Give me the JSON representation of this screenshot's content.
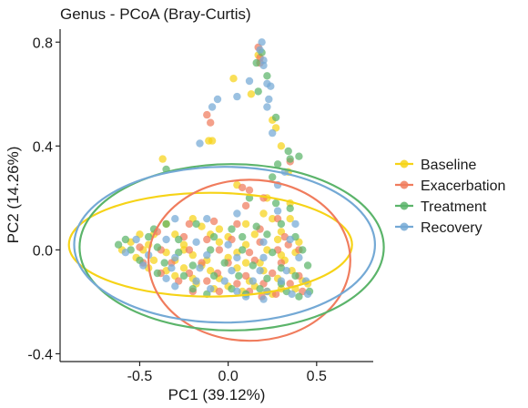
{
  "chart_data": {
    "type": "scatter",
    "title": "Genus - PCoA (Bray-Curtis)",
    "xlabel": "PC1 (39.12%)",
    "ylabel": "PC2 (14.26%)",
    "xlim": [
      -0.95,
      0.82
    ],
    "ylim": [
      -0.43,
      0.85
    ],
    "xticks": [
      -0.5,
      0.0,
      0.5
    ],
    "xtick_labels": [
      "-0.5",
      "0.0",
      "0.5"
    ],
    "yticks": [
      -0.4,
      0.0,
      0.4,
      0.8
    ],
    "ytick_labels": [
      "-0.4",
      "0.0",
      "0.4",
      "0.8"
    ],
    "grid": false,
    "legend_position": "right",
    "series": [
      {
        "name": "Baseline",
        "color": "#F6D317",
        "points": [
          [
            0.17,
            0.75
          ],
          [
            0.03,
            0.66
          ],
          [
            0.13,
            0.6
          ],
          [
            0.25,
            0.5
          ],
          [
            0.27,
            0.47
          ],
          [
            -0.11,
            0.42
          ],
          [
            -0.09,
            0.42
          ],
          [
            -0.37,
            0.35
          ],
          [
            0.3,
            0.4
          ],
          [
            0.34,
            0.3
          ],
          [
            0.05,
            0.25
          ],
          [
            0.22,
            0.2
          ],
          [
            0.35,
            0.18
          ],
          [
            -0.2,
            0.12
          ],
          [
            -0.35,
            0.1
          ],
          [
            -0.15,
            0.09
          ],
          [
            -0.05,
            0.08
          ],
          [
            0.1,
            0.1
          ],
          [
            0.2,
            0.14
          ],
          [
            0.25,
            0.12
          ],
          [
            0.35,
            0.12
          ],
          [
            -0.5,
            0.06
          ],
          [
            -0.42,
            0.06
          ],
          [
            -0.3,
            0.06
          ],
          [
            -0.1,
            0.06
          ],
          [
            0.0,
            0.05
          ],
          [
            0.15,
            0.06
          ],
          [
            0.3,
            0.07
          ],
          [
            -0.55,
            0.03
          ],
          [
            -0.45,
            0.02
          ],
          [
            -0.25,
            0.02
          ],
          [
            -0.05,
            0.03
          ],
          [
            0.1,
            0.02
          ],
          [
            0.28,
            0.04
          ],
          [
            0.4,
            0.03
          ],
          [
            -0.6,
            0.0
          ],
          [
            -0.48,
            0.0
          ],
          [
            -0.35,
            -0.01
          ],
          [
            -0.2,
            -0.02
          ],
          [
            0.05,
            -0.01
          ],
          [
            0.22,
            0.0
          ],
          [
            0.38,
            -0.01
          ],
          [
            -0.52,
            -0.03
          ],
          [
            -0.42,
            -0.04
          ],
          [
            -0.3,
            -0.04
          ],
          [
            -0.12,
            -0.04
          ],
          [
            0.0,
            -0.03
          ],
          [
            0.18,
            -0.05
          ],
          [
            0.32,
            -0.04
          ],
          [
            -0.45,
            -0.07
          ],
          [
            -0.35,
            -0.08
          ],
          [
            -0.25,
            -0.07
          ],
          [
            -0.1,
            -0.08
          ],
          [
            0.05,
            -0.07
          ],
          [
            0.2,
            -0.08
          ],
          [
            0.36,
            -0.08
          ],
          [
            -0.3,
            -0.1
          ],
          [
            -0.2,
            -0.11
          ],
          [
            -0.05,
            -0.11
          ],
          [
            0.12,
            -0.12
          ],
          [
            0.28,
            -0.11
          ],
          [
            0.42,
            -0.12
          ],
          [
            -0.18,
            -0.13
          ],
          [
            0.0,
            -0.14
          ],
          [
            0.15,
            -0.14
          ],
          [
            0.3,
            -0.15
          ],
          [
            -0.08,
            -0.15
          ],
          [
            0.08,
            -0.16
          ],
          [
            0.22,
            -0.16
          ],
          [
            0.38,
            -0.15
          ],
          [
            0.45,
            -0.13
          ],
          [
            0.25,
            -0.17
          ],
          [
            -0.15,
            -0.06
          ],
          [
            0.1,
            -0.05
          ],
          [
            0.3,
            -0.02
          ],
          [
            -0.25,
            0.0
          ]
        ]
      },
      {
        "name": "Exacerbation",
        "color": "#F07C5D",
        "points": [
          [
            0.17,
            0.78
          ],
          [
            0.18,
            0.74
          ],
          [
            0.18,
            0.72
          ],
          [
            -0.12,
            0.52
          ],
          [
            0.35,
            0.34
          ],
          [
            -0.1,
            0.49
          ],
          [
            0.08,
            0.24
          ],
          [
            0.12,
            0.23
          ],
          [
            0.2,
            0.2
          ],
          [
            0.1,
            0.17
          ],
          [
            0.28,
            0.12
          ],
          [
            0.32,
            0.05
          ],
          [
            -0.22,
            0.1
          ],
          [
            -0.08,
            0.11
          ],
          [
            0.05,
            0.1
          ],
          [
            0.18,
            0.08
          ],
          [
            -0.4,
            0.07
          ],
          [
            -0.25,
            0.05
          ],
          [
            -0.12,
            0.04
          ],
          [
            0.02,
            0.04
          ],
          [
            0.18,
            0.03
          ],
          [
            0.34,
            0.02
          ],
          [
            -0.5,
            0.01
          ],
          [
            -0.38,
            0.0
          ],
          [
            -0.22,
            0.0
          ],
          [
            -0.05,
            0.0
          ],
          [
            0.12,
            -0.01
          ],
          [
            0.28,
            0.0
          ],
          [
            0.4,
            0.0
          ],
          [
            -0.48,
            -0.05
          ],
          [
            -0.32,
            -0.05
          ],
          [
            -0.15,
            -0.05
          ],
          [
            0.0,
            -0.05
          ],
          [
            0.15,
            -0.04
          ],
          [
            0.3,
            -0.05
          ],
          [
            -0.38,
            -0.09
          ],
          [
            -0.22,
            -0.09
          ],
          [
            -0.06,
            -0.09
          ],
          [
            0.1,
            -0.1
          ],
          [
            0.25,
            -0.09
          ],
          [
            0.4,
            -0.1
          ],
          [
            -0.28,
            -0.12
          ],
          [
            -0.12,
            -0.12
          ],
          [
            0.05,
            -0.13
          ],
          [
            0.2,
            -0.13
          ],
          [
            0.35,
            -0.13
          ],
          [
            -0.05,
            -0.16
          ],
          [
            0.12,
            -0.16
          ],
          [
            0.27,
            -0.17
          ],
          [
            0.42,
            -0.16
          ],
          [
            0.19,
            -0.18
          ],
          [
            -0.2,
            -0.16
          ]
        ]
      },
      {
        "name": "Treatment",
        "color": "#5BB46A",
        "points": [
          [
            0.19,
            0.76
          ],
          [
            0.16,
            0.72
          ],
          [
            0.22,
            0.67
          ],
          [
            0.17,
            0.61
          ],
          [
            0.27,
            0.51
          ],
          [
            0.34,
            0.38
          ],
          [
            0.35,
            0.35
          ],
          [
            0.28,
            0.33
          ],
          [
            0.25,
            0.28
          ],
          [
            0.4,
            0.36
          ],
          [
            -0.35,
            0.31
          ],
          [
            -0.42,
            0.08
          ],
          [
            -0.35,
            0.1
          ],
          [
            -0.18,
            0.1
          ],
          [
            0.02,
            0.08
          ],
          [
            0.12,
            0.2
          ],
          [
            0.27,
            0.18
          ],
          [
            0.35,
            0.16
          ],
          [
            0.16,
            0.09
          ],
          [
            0.3,
            0.1
          ],
          [
            -0.58,
            0.04
          ],
          [
            -0.45,
            0.05
          ],
          [
            -0.28,
            0.04
          ],
          [
            -0.08,
            0.05
          ],
          [
            0.08,
            0.05
          ],
          [
            0.22,
            0.06
          ],
          [
            0.38,
            0.05
          ],
          [
            -0.55,
            0.0
          ],
          [
            -0.4,
            0.01
          ],
          [
            -0.28,
            -0.01
          ],
          [
            -0.1,
            0.0
          ],
          [
            0.08,
            0.0
          ],
          [
            0.25,
            -0.01
          ],
          [
            0.42,
            0.0
          ],
          [
            -0.5,
            -0.04
          ],
          [
            -0.36,
            -0.05
          ],
          [
            -0.2,
            -0.06
          ],
          [
            -0.02,
            -0.05
          ],
          [
            0.14,
            -0.06
          ],
          [
            0.3,
            -0.07
          ],
          [
            0.45,
            -0.06
          ],
          [
            -0.4,
            -0.09
          ],
          [
            -0.25,
            -0.1
          ],
          [
            -0.08,
            -0.1
          ],
          [
            0.06,
            -0.1
          ],
          [
            0.22,
            -0.11
          ],
          [
            0.38,
            -0.1
          ],
          [
            -0.2,
            -0.15
          ],
          [
            0.02,
            -0.15
          ],
          [
            0.18,
            -0.15
          ],
          [
            0.33,
            -0.16
          ],
          [
            0.46,
            -0.16
          ],
          [
            -0.12,
            -0.17
          ],
          [
            0.1,
            -0.17
          ],
          [
            0.4,
            -0.18
          ],
          [
            0.3,
            -0.13
          ],
          [
            -0.62,
            0.02
          ]
        ]
      },
      {
        "name": "Recovery",
        "color": "#74A9D5",
        "points": [
          [
            0.19,
            0.8
          ],
          [
            0.18,
            0.77
          ],
          [
            0.2,
            0.73
          ],
          [
            0.2,
            0.71
          ],
          [
            0.22,
            0.64
          ],
          [
            0.12,
            0.65
          ],
          [
            0.24,
            0.63
          ],
          [
            0.23,
            0.58
          ],
          [
            0.05,
            0.59
          ],
          [
            -0.06,
            0.58
          ],
          [
            0.22,
            0.55
          ],
          [
            -0.09,
            0.55
          ],
          [
            0.25,
            0.45
          ],
          [
            -0.16,
            0.41
          ],
          [
            0.32,
            0.3
          ],
          [
            0.28,
            0.25
          ],
          [
            -0.3,
            0.12
          ],
          [
            -0.12,
            0.12
          ],
          [
            0.05,
            0.14
          ],
          [
            0.28,
            0.15
          ],
          [
            0.38,
            0.1
          ],
          [
            -0.52,
            0.04
          ],
          [
            -0.35,
            0.04
          ],
          [
            -0.18,
            0.03
          ],
          [
            0.0,
            0.02
          ],
          [
            0.2,
            0.03
          ],
          [
            0.35,
            0.04
          ],
          [
            -0.58,
            -0.01
          ],
          [
            -0.45,
            -0.02
          ],
          [
            -0.3,
            -0.03
          ],
          [
            -0.12,
            -0.02
          ],
          [
            0.05,
            -0.03
          ],
          [
            0.2,
            -0.03
          ],
          [
            0.4,
            -0.03
          ],
          [
            -0.48,
            -0.06
          ],
          [
            -0.32,
            -0.07
          ],
          [
            -0.16,
            -0.07
          ],
          [
            0.02,
            -0.08
          ],
          [
            0.18,
            -0.08
          ],
          [
            0.33,
            -0.08
          ],
          [
            -0.35,
            -0.11
          ],
          [
            -0.18,
            -0.12
          ],
          [
            -0.02,
            -0.12
          ],
          [
            0.14,
            -0.12
          ],
          [
            0.3,
            -0.12
          ],
          [
            0.44,
            -0.12
          ],
          [
            -0.1,
            -0.15
          ],
          [
            0.05,
            -0.16
          ],
          [
            0.22,
            -0.16
          ],
          [
            0.36,
            -0.17
          ],
          [
            0.45,
            -0.17
          ],
          [
            -0.3,
            -0.14
          ],
          [
            0.1,
            -0.18
          ],
          [
            0.2,
            -0.19
          ]
        ]
      }
    ],
    "ellipses": [
      {
        "name": "Baseline",
        "color": "#F6D317",
        "center": [
          -0.1,
          0.02
        ],
        "rx": 0.8,
        "ry": 0.2
      },
      {
        "name": "Exacerbation",
        "color": "#F07C5D",
        "center": [
          0.12,
          -0.04
        ],
        "rx": 0.57,
        "ry": 0.31
      },
      {
        "name": "Treatment",
        "color": "#5BB46A",
        "center": [
          0.02,
          0.01
        ],
        "rx": 0.86,
        "ry": 0.32
      },
      {
        "name": "Recovery",
        "color": "#74A9D5",
        "center": [
          -0.02,
          0.02
        ],
        "rx": 0.85,
        "ry": 0.3
      }
    ]
  }
}
